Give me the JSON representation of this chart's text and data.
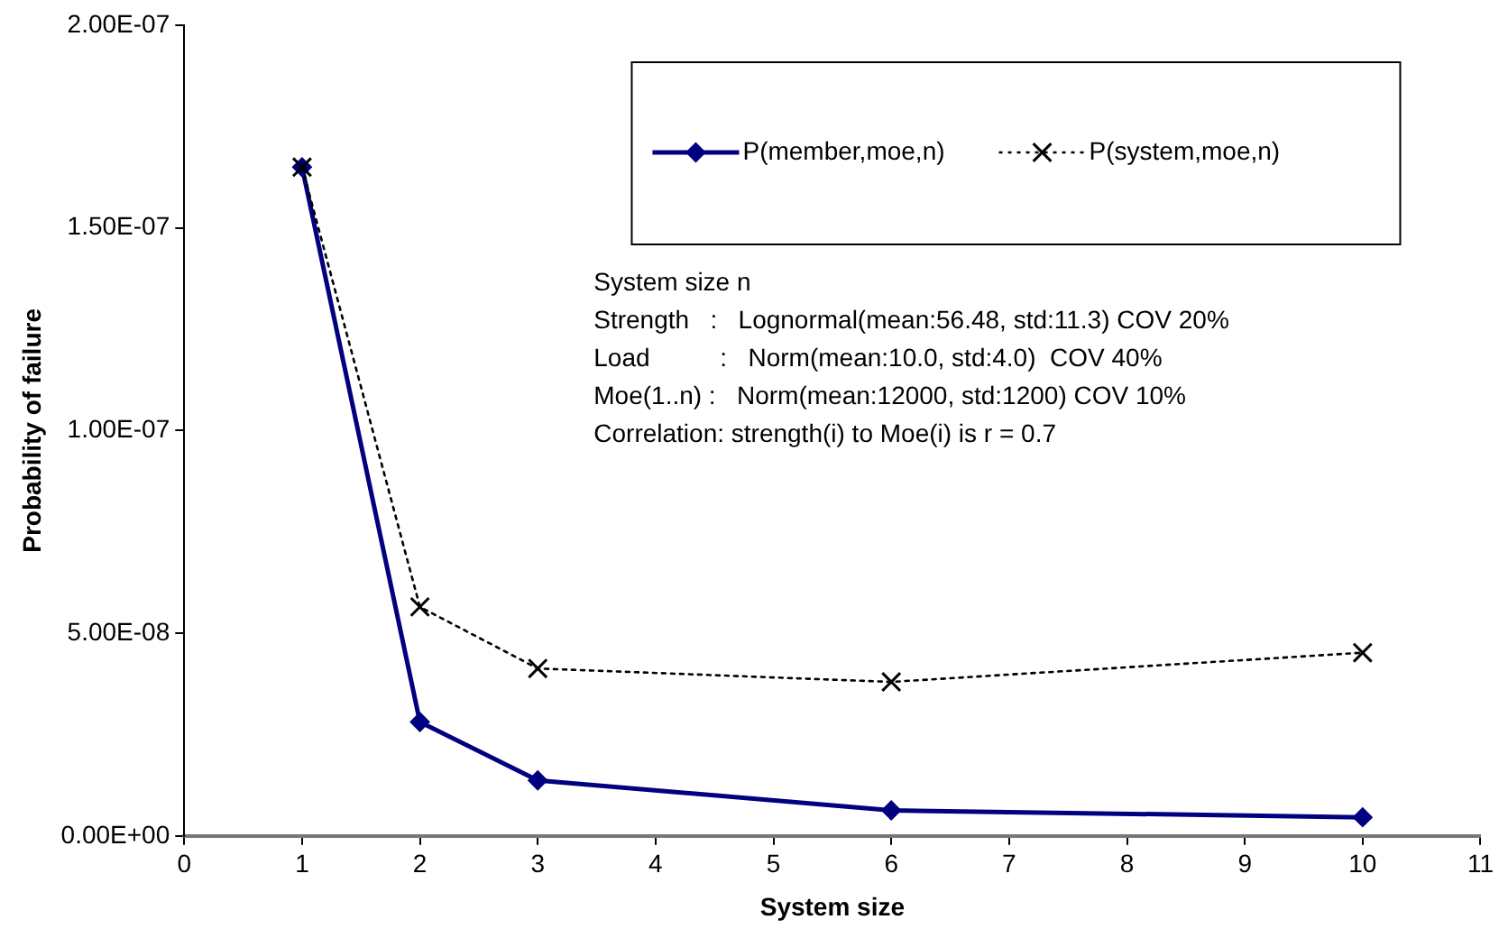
{
  "chart_data": {
    "type": "line",
    "xlabel": "System size",
    "ylabel": "Probability of failure",
    "x": [
      1,
      2,
      3,
      6,
      10
    ],
    "series": [
      {
        "name": "P(member,moe,n)",
        "color": "#000080",
        "marker": "diamond",
        "line_style": "solid",
        "values": [
          1.65e-07,
          2.81e-08,
          1.37e-08,
          6.3e-09,
          4.6e-09
        ]
      },
      {
        "name": "P(system,moe,n)",
        "color": "#000000",
        "marker": "cross",
        "line_style": "dotted",
        "values": [
          1.65e-07,
          5.65e-08,
          4.13e-08,
          3.8e-08,
          4.52e-08
        ]
      }
    ],
    "xlim": [
      0,
      11
    ],
    "xticks": [
      0,
      1,
      2,
      3,
      4,
      5,
      6,
      7,
      8,
      9,
      10,
      11
    ],
    "ylim": [
      0,
      2e-07
    ],
    "yticks": [
      {
        "value": 0,
        "label": "0.00E+00"
      },
      {
        "value": 5e-08,
        "label": "5.00E-08"
      },
      {
        "value": 1e-07,
        "label": "1.00E-07"
      },
      {
        "value": 1.5e-07,
        "label": "1.50E-07"
      },
      {
        "value": 2e-07,
        "label": "2.00E-07"
      }
    ],
    "grid": false,
    "legend": "top right",
    "annotations": [
      "System size n",
      "Strength   :   Lognormal(mean:56.48, std:11.3) COV 20%",
      "Load          :   Norm(mean:10.0, std:4.0)  COV 40%",
      "Moe(1..n) :   Norm(mean:12000, std:1200) COV 10%",
      "Correlation: strength(i) to Moe(i) is r = 0.7"
    ]
  }
}
